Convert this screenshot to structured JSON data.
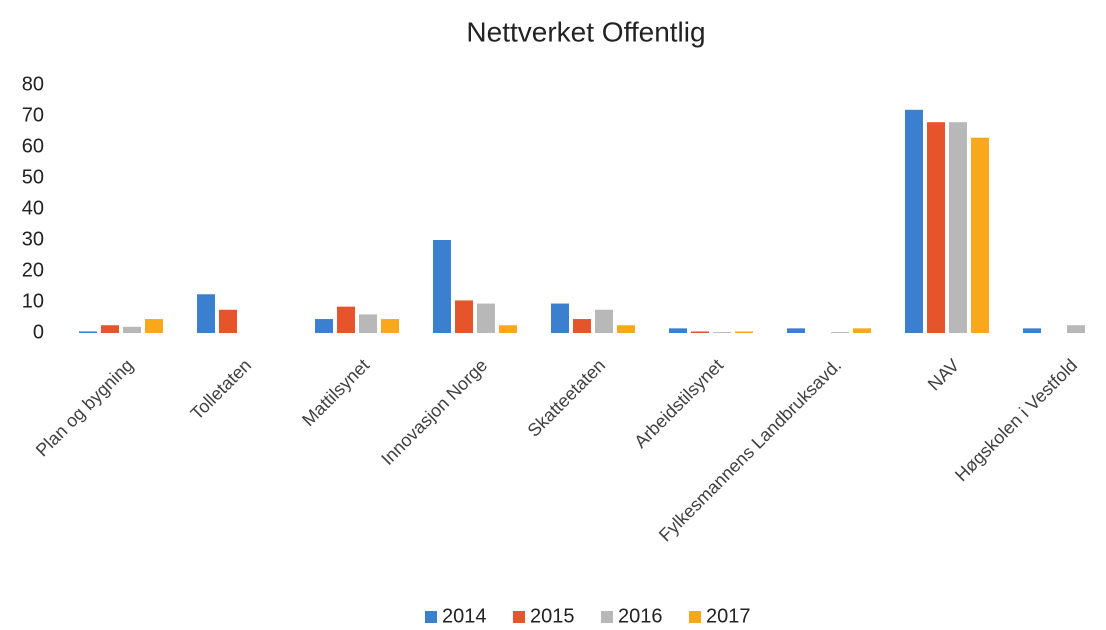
{
  "chart_data": {
    "type": "bar",
    "title": "Nettverket Offentlig",
    "categories": [
      "Plan og bygning",
      "Tolletaten",
      "Mattilsynet",
      "Innovasjon Norge",
      "Skatteetaten",
      "Arbeidstilsynet",
      "Fylkesmannens Landbruksavd.",
      "NAV",
      "Høgskolen i Vestfold"
    ],
    "series": [
      {
        "name": "2014",
        "color": "#3a80cf",
        "values": [
          0.5,
          12.5,
          4.5,
          30,
          9.5,
          1.5,
          1.5,
          72,
          1.5
        ]
      },
      {
        "name": "2015",
        "color": "#e5542a",
        "values": [
          2.5,
          7.5,
          8.5,
          10.5,
          4.5,
          0.5,
          0,
          68,
          0
        ]
      },
      {
        "name": "2016",
        "color": "#b8b8b8",
        "values": [
          2,
          0,
          6,
          9.5,
          7.5,
          0.3,
          0.3,
          68,
          2.5
        ]
      },
      {
        "name": "2017",
        "color": "#f9a81b",
        "values": [
          4.5,
          0,
          4.5,
          2.5,
          2.5,
          0.5,
          1.5,
          63,
          0
        ]
      }
    ],
    "ylim": [
      0,
      80
    ],
    "yticks": [
      0,
      10,
      20,
      30,
      40,
      50,
      60,
      70,
      80
    ],
    "grid": false,
    "legend": "bottom"
  }
}
